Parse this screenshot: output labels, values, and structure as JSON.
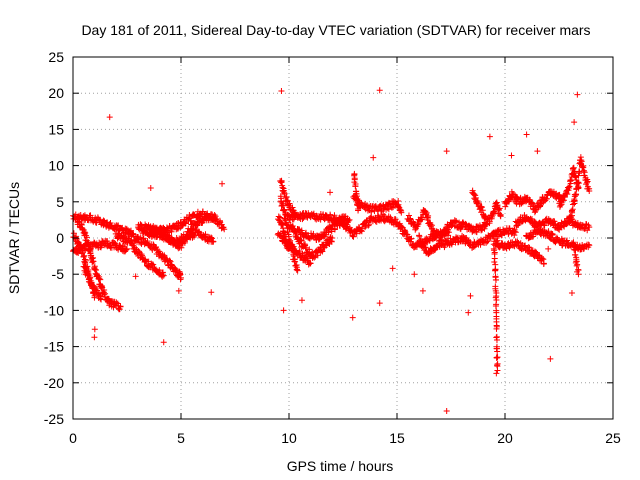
{
  "chart_data": {
    "type": "scatter",
    "title": "Day 181 of 2011, Sidereal Day-to-day VTEC variation (SDTVAR) for receiver mars",
    "xlabel": "GPS time / hours",
    "ylabel": "SDTVAR / TECUs",
    "xlim": [
      0,
      25
    ],
    "ylim": [
      -25,
      25
    ],
    "xticks": [
      0,
      5,
      10,
      15,
      20,
      25
    ],
    "yticks": [
      -25,
      -20,
      -15,
      -10,
      -5,
      0,
      5,
      10,
      15,
      20,
      25
    ],
    "xtick_labels": [
      "0",
      "5",
      "10",
      "15",
      "20",
      "25"
    ],
    "ytick_labels": [
      "-25",
      "-20",
      "-15",
      "-10",
      "-5",
      "0",
      "5",
      "10",
      "15",
      "20",
      "25"
    ],
    "grid": true,
    "marker": "+",
    "color": "#ff0000",
    "series": [
      {
        "name": "SDTVAR",
        "tracks": [
          [
            [
              0.0,
              0.5
            ],
            [
              0.3,
              -1.0
            ],
            [
              0.6,
              -3.5
            ],
            [
              0.8,
              -6.0
            ],
            [
              1.0,
              -8.0
            ]
          ],
          [
            [
              0.2,
              2.5
            ],
            [
              0.5,
              1.0
            ],
            [
              0.8,
              -2.0
            ],
            [
              1.1,
              -5.0
            ],
            [
              1.4,
              -7.5
            ],
            [
              1.7,
              -9.0
            ],
            [
              2.2,
              -9.5
            ]
          ],
          [
            [
              0.0,
              3.0
            ],
            [
              0.8,
              2.8
            ],
            [
              1.5,
              2.0
            ],
            [
              2.2,
              1.2
            ],
            [
              2.8,
              0.5
            ]
          ],
          [
            [
              0.0,
              -2.0
            ],
            [
              0.7,
              -1.2
            ],
            [
              1.5,
              -0.8
            ],
            [
              2.5,
              -1.5
            ]
          ],
          [
            [
              0.5,
              -4.0
            ],
            [
              0.9,
              -6.5
            ],
            [
              1.3,
              -8.5
            ]
          ],
          [
            [
              2.0,
              0.5
            ],
            [
              2.6,
              -0.5
            ],
            [
              3.0,
              -2.0
            ],
            [
              3.4,
              -3.5
            ],
            [
              3.8,
              -4.2
            ],
            [
              4.2,
              -5.2
            ]
          ],
          [
            [
              2.8,
              0.0
            ],
            [
              3.4,
              -0.6
            ],
            [
              3.9,
              -1.8
            ],
            [
              4.4,
              -3.3
            ],
            [
              4.9,
              -5.0
            ],
            [
              5.0,
              -5.5
            ]
          ],
          [
            [
              3.0,
              1.5
            ],
            [
              3.6,
              1.4
            ],
            [
              4.2,
              1.0
            ],
            [
              4.8,
              1.5
            ],
            [
              5.3,
              2.6
            ],
            [
              5.8,
              3.3
            ],
            [
              6.3,
              3.2
            ],
            [
              6.8,
              2.0
            ],
            [
              7.0,
              1.2
            ]
          ],
          [
            [
              3.2,
              1.0
            ],
            [
              3.8,
              1.0
            ],
            [
              4.3,
              0.3
            ],
            [
              4.7,
              -0.8
            ],
            [
              5.0,
              -1.2
            ],
            [
              5.3,
              0.2
            ],
            [
              5.8,
              0.8
            ],
            [
              6.2,
              0.0
            ],
            [
              6.5,
              -0.5
            ]
          ],
          [
            [
              3.5,
              0.6
            ],
            [
              4.0,
              0.4
            ],
            [
              4.5,
              -0.5
            ],
            [
              5.0,
              -0.3
            ],
            [
              5.5,
              1.5
            ],
            [
              6.0,
              2.5
            ],
            [
              6.6,
              3.0
            ]
          ],
          [
            [
              9.5,
              3.0
            ],
            [
              9.7,
              1.8
            ],
            [
              9.8,
              0.5
            ],
            [
              9.9,
              -1.0
            ],
            [
              10.0,
              -1.5
            ]
          ],
          [
            [
              9.6,
              5.5
            ],
            [
              9.8,
              3.5
            ],
            [
              10.0,
              0.0
            ],
            [
              10.2,
              -2.5
            ],
            [
              10.4,
              -4.5
            ]
          ],
          [
            [
              9.6,
              8.0
            ],
            [
              9.8,
              6.0
            ],
            [
              10.0,
              4.5
            ],
            [
              10.3,
              3.0
            ]
          ],
          [
            [
              9.5,
              0.5
            ],
            [
              10.0,
              -1.0
            ],
            [
              10.6,
              -2.5
            ],
            [
              11.0,
              -3.5
            ]
          ],
          [
            [
              9.8,
              2.8
            ],
            [
              10.5,
              3.0
            ],
            [
              11.2,
              3.0
            ],
            [
              12.0,
              2.8
            ],
            [
              12.8,
              2.5
            ]
          ],
          [
            [
              10.0,
              1.5
            ],
            [
              10.8,
              0.5
            ],
            [
              11.3,
              0.0
            ],
            [
              11.8,
              1.0
            ],
            [
              12.2,
              1.8
            ],
            [
              12.6,
              2.5
            ]
          ],
          [
            [
              10.3,
              0.2
            ],
            [
              10.7,
              -1.2
            ],
            [
              11.1,
              -2.5
            ],
            [
              11.5,
              -1.5
            ],
            [
              12.0,
              0.0
            ]
          ],
          [
            [
              12.5,
              2.0
            ],
            [
              13.0,
              0.5
            ],
            [
              13.4,
              1.5
            ],
            [
              13.8,
              2.5
            ],
            [
              14.4,
              2.8
            ],
            [
              15.0,
              2.2
            ],
            [
              15.4,
              0.5
            ],
            [
              15.8,
              -1.0
            ],
            [
              16.3,
              -0.5
            ],
            [
              16.8,
              0.5
            ],
            [
              17.4,
              0.8
            ]
          ],
          [
            [
              13.0,
              6.0
            ],
            [
              13.3,
              4.5
            ],
            [
              13.8,
              4.0
            ],
            [
              14.5,
              4.2
            ],
            [
              15.0,
              5.0
            ],
            [
              15.2,
              3.5
            ]
          ],
          [
            [
              13.0,
              9.0
            ],
            [
              13.1,
              6.5
            ],
            [
              13.2,
              4.0
            ]
          ],
          [
            [
              15.5,
              3.0
            ],
            [
              15.8,
              1.5
            ],
            [
              16.0,
              2.0
            ],
            [
              16.3,
              3.8
            ],
            [
              16.5,
              2.0
            ],
            [
              16.8,
              0.0
            ]
          ],
          [
            [
              16.0,
              0.0
            ],
            [
              16.4,
              -2.0
            ],
            [
              16.8,
              -1.5
            ],
            [
              17.2,
              1.0
            ],
            [
              17.6,
              2.2
            ],
            [
              18.0,
              1.5
            ]
          ],
          [
            [
              17.0,
              -1.0
            ],
            [
              17.5,
              -0.5
            ],
            [
              18.0,
              0.0
            ],
            [
              18.5,
              -1.0
            ],
            [
              19.0,
              -0.5
            ],
            [
              19.5,
              0.5
            ],
            [
              20.0,
              1.0
            ],
            [
              20.5,
              0.8
            ]
          ],
          [
            [
              18.0,
              2.0
            ],
            [
              18.5,
              1.0
            ],
            [
              19.0,
              1.5
            ],
            [
              19.4,
              3.0
            ],
            [
              19.6,
              5.0
            ],
            [
              19.8,
              3.0
            ]
          ],
          [
            [
              18.5,
              6.5
            ],
            [
              18.8,
              4.5
            ],
            [
              19.1,
              3.0
            ]
          ],
          [
            [
              19.5,
              -1.0
            ],
            [
              19.55,
              -5.0
            ],
            [
              19.6,
              -10.0
            ],
            [
              19.62,
              -15.0
            ],
            [
              19.65,
              -18.3
            ]
          ],
          [
            [
              19.5,
              -0.5
            ],
            [
              20.0,
              -1.2
            ],
            [
              20.5,
              -0.8
            ],
            [
              21.0,
              -1.5
            ],
            [
              21.5,
              -2.5
            ],
            [
              21.8,
              -3.5
            ]
          ],
          [
            [
              20.0,
              4.5
            ],
            [
              20.3,
              6.0
            ],
            [
              20.6,
              5.0
            ],
            [
              21.0,
              5.5
            ],
            [
              21.4,
              4.0
            ],
            [
              21.8,
              5.5
            ],
            [
              22.2,
              6.2
            ],
            [
              22.6,
              5.5
            ]
          ],
          [
            [
              20.5,
              2.0
            ],
            [
              21.0,
              3.0
            ],
            [
              21.5,
              1.5
            ],
            [
              22.0,
              2.5
            ],
            [
              22.5,
              1.5
            ],
            [
              23.0,
              2.5
            ],
            [
              23.5,
              1.5
            ],
            [
              23.9,
              1.5
            ]
          ],
          [
            [
              21.0,
              0.0
            ],
            [
              21.5,
              1.0
            ],
            [
              22.0,
              0.5
            ],
            [
              22.5,
              -0.5
            ],
            [
              23.0,
              -0.8
            ],
            [
              23.5,
              -1.2
            ],
            [
              23.9,
              -1.0
            ]
          ],
          [
            [
              23.0,
              2.5
            ],
            [
              23.2,
              5.0
            ],
            [
              23.4,
              8.0
            ],
            [
              23.5,
              11.0
            ],
            [
              23.7,
              8.5
            ],
            [
              23.9,
              6.5
            ]
          ],
          [
            [
              22.5,
              4.5
            ],
            [
              22.9,
              6.5
            ],
            [
              23.2,
              9.5
            ],
            [
              23.4,
              7.0
            ]
          ],
          [
            [
              23.2,
              -1.0
            ],
            [
              23.3,
              -3.0
            ],
            [
              23.4,
              -5.0
            ]
          ]
        ],
        "points": [
          [
            1.7,
            16.7
          ],
          [
            3.6,
            6.9
          ],
          [
            6.9,
            7.5
          ],
          [
            6.4,
            -7.5
          ],
          [
            4.2,
            -14.4
          ],
          [
            0.99,
            -13.7
          ],
          [
            1.01,
            -12.6
          ],
          [
            9.65,
            20.3
          ],
          [
            9.75,
            -10.0
          ],
          [
            10.6,
            -8.6
          ],
          [
            12.95,
            -11.0
          ],
          [
            13.9,
            11.1
          ],
          [
            14.2,
            20.4
          ],
          [
            14.2,
            -9.0
          ],
          [
            14.8,
            -4.2
          ],
          [
            16.2,
            -7.3
          ],
          [
            17.3,
            12.0
          ],
          [
            17.3,
            -23.9
          ],
          [
            18.3,
            -10.3
          ],
          [
            18.4,
            -8.0
          ],
          [
            19.3,
            14.0
          ],
          [
            19.6,
            -18.7
          ],
          [
            21.0,
            14.3
          ],
          [
            21.5,
            12.0
          ],
          [
            22.1,
            -16.7
          ],
          [
            23.2,
            16.0
          ],
          [
            23.35,
            19.8
          ],
          [
            23.1,
            -7.6
          ],
          [
            22.0,
            -1.5
          ],
          [
            11.9,
            6.3
          ],
          [
            2.9,
            -5.3
          ],
          [
            4.9,
            -7.3
          ],
          [
            15.8,
            -5.0
          ],
          [
            20.3,
            11.4
          ]
        ]
      }
    ]
  }
}
